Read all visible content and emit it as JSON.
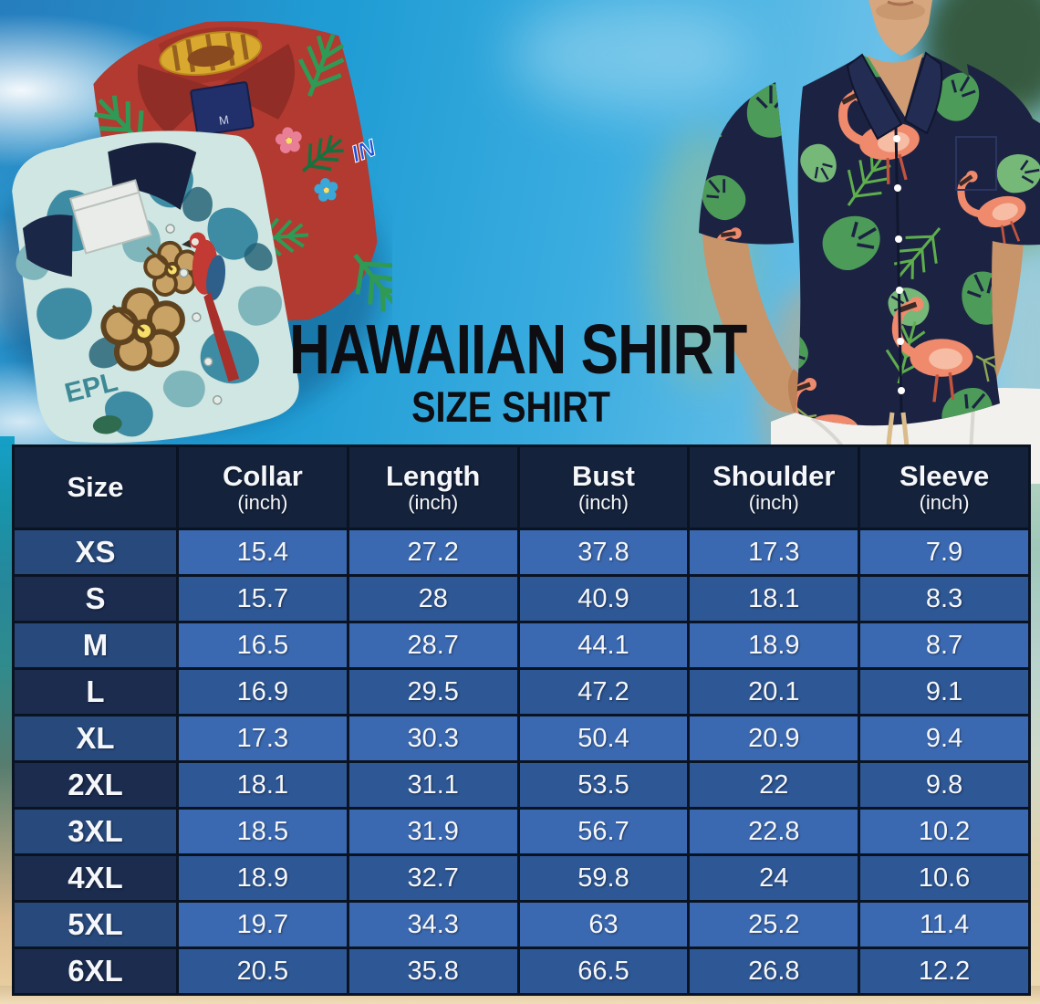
{
  "title": {
    "main": "HAWAIIAN SHIRT",
    "sub": "SIZE SHIRT"
  },
  "photos": {
    "left_alt": "Two folded Hawaiian shirts (red tropical print and teal hibiscus-parrot print) on blue sky",
    "right_alt": "Man wearing a navy Hawaiian shirt with green tropical leaves and pink flamingos, white pants",
    "red_tag_label": "M",
    "red_shirt_logo": "IN",
    "teal_print_text": "EPL"
  },
  "colors": {
    "header_bg": "#14223c",
    "row_light": "#3b69b1",
    "row_dark": "#2e5795",
    "size_light": "#27497c",
    "size_dark": "#1b2c4f",
    "table_border": "#0a1322",
    "title_color": "#0d0d12"
  },
  "chart_data": {
    "type": "table",
    "title": "Hawaiian Shirt Size Shirt",
    "columns": [
      {
        "label": "Size",
        "unit": ""
      },
      {
        "label": "Collar",
        "unit": "(inch)"
      },
      {
        "label": "Length",
        "unit": "(inch)"
      },
      {
        "label": "Bust",
        "unit": "(inch)"
      },
      {
        "label": "Shoulder",
        "unit": "(inch)"
      },
      {
        "label": "Sleeve",
        "unit": "(inch)"
      }
    ],
    "rows": [
      {
        "size": "XS",
        "values": [
          "15.4",
          "27.2",
          "37.8",
          "17.3",
          "7.9"
        ]
      },
      {
        "size": "S",
        "values": [
          "15.7",
          "28",
          "40.9",
          "18.1",
          "8.3"
        ]
      },
      {
        "size": "M",
        "values": [
          "16.5",
          "28.7",
          "44.1",
          "18.9",
          "8.7"
        ]
      },
      {
        "size": "L",
        "values": [
          "16.9",
          "29.5",
          "47.2",
          "20.1",
          "9.1"
        ]
      },
      {
        "size": "XL",
        "values": [
          "17.3",
          "30.3",
          "50.4",
          "20.9",
          "9.4"
        ]
      },
      {
        "size": "2XL",
        "values": [
          "18.1",
          "31.1",
          "53.5",
          "22",
          "9.8"
        ]
      },
      {
        "size": "3XL",
        "values": [
          "18.5",
          "31.9",
          "56.7",
          "22.8",
          "10.2"
        ]
      },
      {
        "size": "4XL",
        "values": [
          "18.9",
          "32.7",
          "59.8",
          "24",
          "10.6"
        ]
      },
      {
        "size": "5XL",
        "values": [
          "19.7",
          "34.3",
          "63",
          "25.2",
          "11.4"
        ]
      },
      {
        "size": "6XL",
        "values": [
          "20.5",
          "35.8",
          "66.5",
          "26.8",
          "12.2"
        ]
      }
    ]
  }
}
